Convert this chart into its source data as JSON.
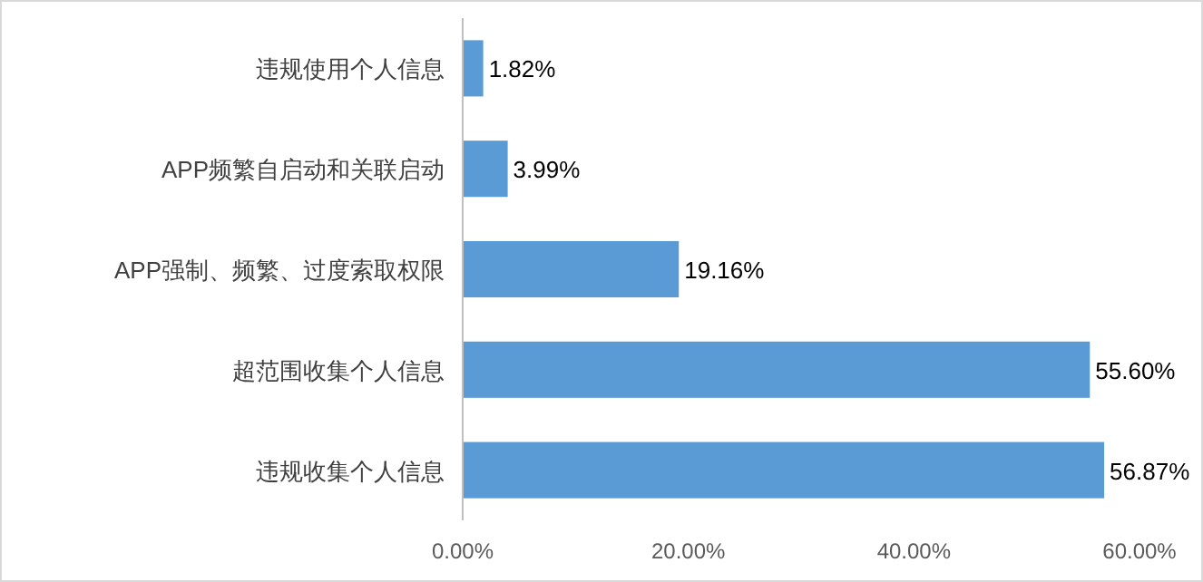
{
  "chart_data": {
    "type": "bar",
    "orientation": "horizontal",
    "categories": [
      "违规使用个人信息",
      "APP频繁自启动和关联启动",
      "APP强制、频繁、过度索取权限",
      "超范围收集个人信息",
      "违规收集个人信息"
    ],
    "values": [
      1.82,
      3.99,
      19.16,
      55.6,
      56.87
    ],
    "value_labels": [
      "1.82%",
      "3.99%",
      "19.16%",
      "55.60%",
      "56.87%"
    ],
    "color": "#5b9bd5",
    "xlim": [
      0,
      60
    ],
    "xticks": [
      {
        "value": 0,
        "label": "0.00%"
      },
      {
        "value": 20,
        "label": "20.00%"
      },
      {
        "value": 40,
        "label": "40.00%"
      },
      {
        "value": 60,
        "label": "60.00%"
      }
    ],
    "grid": false
  }
}
